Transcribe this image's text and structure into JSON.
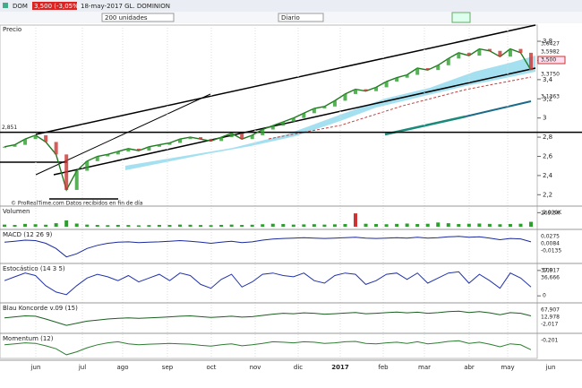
{
  "toolbar": {
    "symbol": "DOM",
    "price_badge": "3,500 (-3,05%)",
    "status": "18-may-2017 GL. DOMINION",
    "units": "200 unidades",
    "period": "Diario"
  },
  "price": {
    "title": "Precio",
    "ylim": [
      2.1,
      3.95
    ],
    "yticks": [
      {
        "value": 3.8,
        "label": "3,8"
      },
      {
        "value": 3.6,
        "label": "3,6"
      },
      {
        "value": 3.4,
        "label": "3,4"
      },
      {
        "value": 3.2,
        "label": "3,2"
      },
      {
        "value": 3,
        "label": "3"
      },
      {
        "value": 2.8,
        "label": "2,8"
      },
      {
        "value": 2.6,
        "label": "2,6"
      },
      {
        "value": 2.4,
        "label": "2,4"
      },
      {
        "value": 2.2,
        "label": "2,2"
      }
    ],
    "readouts": [
      "3,6427",
      "3,5982",
      "3,500",
      "3,3750",
      "3,1363"
    ],
    "level": {
      "value": 2.851,
      "label": "2,851"
    },
    "close": [
      2.7,
      2.72,
      2.78,
      2.82,
      2.75,
      2.62,
      2.25,
      2.45,
      2.55,
      2.6,
      2.62,
      2.65,
      2.68,
      2.66,
      2.7,
      2.72,
      2.74,
      2.78,
      2.8,
      2.78,
      2.76,
      2.8,
      2.84,
      2.78,
      2.82,
      2.88,
      2.92,
      2.96,
      3.0,
      3.05,
      3.1,
      3.12,
      3.18,
      3.25,
      3.3,
      3.28,
      3.32,
      3.38,
      3.42,
      3.45,
      3.52,
      3.5,
      3.55,
      3.62,
      3.68,
      3.65,
      3.72,
      3.7,
      3.64,
      3.72,
      3.68,
      3.5
    ],
    "color": "#1f7a1f",
    "note": "© ProRealTime.com Datos recibidos en fin de día"
  },
  "panels": [
    {
      "title": "Volumen",
      "kind": "bars",
      "color": "#2e9e2e",
      "ylim": [
        0,
        2300
      ],
      "yticks": [
        {
          "value": 2000,
          "label": "2.000K"
        }
      ],
      "readouts": [
        "269,5K"
      ],
      "values": [
        300,
        250,
        400,
        350,
        280,
        500,
        900,
        450,
        300,
        250,
        220,
        260,
        240,
        200,
        230,
        260,
        250,
        300,
        280,
        240,
        220,
        260,
        300,
        250,
        280,
        350,
        420,
        380,
        300,
        330,
        360,
        300,
        340,
        380,
        1900,
        420,
        380,
        350,
        400,
        450,
        380,
        420,
        600,
        500,
        380,
        420,
        450,
        400,
        350,
        380,
        420,
        700
      ]
    },
    {
      "title": "MACD (12 26 9)",
      "kind": "line",
      "color": "#1a2aa0",
      "ylim": [
        -0.07,
        0.05
      ],
      "yticks": [],
      "readouts": [
        "0,0275",
        "0,0084",
        "-0,0135"
      ],
      "values": [
        0.01,
        0.015,
        0.02,
        0.018,
        0.005,
        -0.02,
        -0.06,
        -0.045,
        -0.02,
        -0.005,
        0.005,
        0.01,
        0.012,
        0.008,
        0.01,
        0.012,
        0.015,
        0.018,
        0.015,
        0.01,
        0.005,
        0.01,
        0.015,
        0.008,
        0.012,
        0.02,
        0.025,
        0.028,
        0.03,
        0.032,
        0.03,
        0.028,
        0.03,
        0.032,
        0.034,
        0.03,
        0.028,
        0.03,
        0.032,
        0.03,
        0.034,
        0.03,
        0.032,
        0.036,
        0.038,
        0.034,
        0.036,
        0.03,
        0.022,
        0.028,
        0.026,
        0.012
      ]
    },
    {
      "title": "Estocástico (14 3 5)",
      "kind": "line",
      "color": "#2233aa",
      "ylim": [
        -10,
        110
      ],
      "yticks": [
        100,
        0
      ],
      "readouts": [
        "37,917",
        "36,666"
      ],
      "values": [
        60,
        75,
        90,
        80,
        40,
        15,
        5,
        40,
        70,
        85,
        75,
        60,
        80,
        55,
        70,
        85,
        60,
        90,
        80,
        45,
        30,
        65,
        85,
        35,
        55,
        85,
        90,
        80,
        75,
        90,
        60,
        50,
        80,
        90,
        85,
        45,
        60,
        85,
        90,
        65,
        90,
        50,
        70,
        90,
        95,
        50,
        85,
        60,
        30,
        90,
        70,
        35
      ]
    },
    {
      "title": "Blau Koncorde v.09 (15)",
      "kind": "line",
      "color": "#1b5e20",
      "ylim": [
        -20,
        90
      ],
      "yticks": [],
      "readouts": [
        "67,907",
        "12,978",
        "-2,017"
      ],
      "values": [
        40,
        45,
        50,
        48,
        35,
        20,
        5,
        15,
        25,
        30,
        35,
        38,
        40,
        38,
        40,
        42,
        45,
        48,
        50,
        46,
        42,
        45,
        48,
        44,
        46,
        52,
        58,
        62,
        60,
        64,
        62,
        58,
        60,
        63,
        66,
        60,
        62,
        65,
        68,
        64,
        67,
        62,
        65,
        70,
        72,
        66,
        70,
        64,
        55,
        65,
        62,
        50
      ]
    },
    {
      "title": "Momentum (12)",
      "kind": "line",
      "color": "#2e7d32",
      "ylim": [
        -0.5,
        0.4
      ],
      "yticks": [],
      "readouts": [
        "-0,201"
      ],
      "values": [
        0.05,
        0.1,
        0.15,
        0.12,
        0.0,
        -0.15,
        -0.45,
        -0.3,
        -0.1,
        0.05,
        0.15,
        0.2,
        0.1,
        0.05,
        0.08,
        0.1,
        0.12,
        0.1,
        0.08,
        0.02,
        -0.02,
        0.05,
        0.1,
        0.0,
        0.05,
        0.12,
        0.2,
        0.18,
        0.15,
        0.2,
        0.18,
        0.12,
        0.15,
        0.2,
        0.22,
        0.12,
        0.1,
        0.15,
        0.18,
        0.12,
        0.2,
        0.1,
        0.15,
        0.22,
        0.25,
        0.12,
        0.18,
        0.08,
        -0.05,
        0.1,
        0.05,
        -0.2
      ]
    }
  ],
  "x_labels": [
    "jun",
    "jul",
    "ago",
    "sep",
    "oct",
    "nov",
    "dic",
    "2017",
    "feb",
    "mar",
    "abr",
    "may",
    "jun"
  ]
}
